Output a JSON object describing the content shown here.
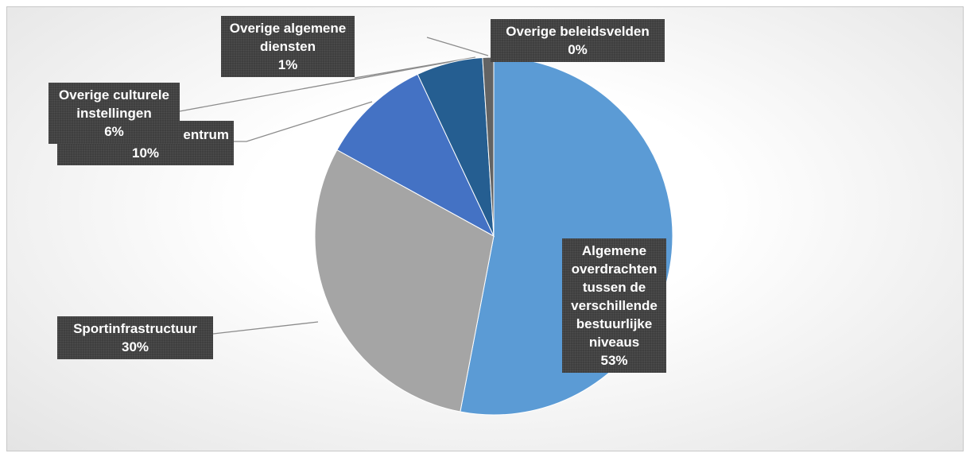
{
  "chart_data": {
    "type": "pie",
    "categories": [
      "Algemene overdrachten tussen de verschillende bestuurlijke niveaus",
      "Sportinfrastructuur",
      "entrum",
      "Overige culturele instellingen",
      "Overige algemene diensten",
      "Overige beleidsvelden"
    ],
    "values": [
      53,
      30,
      10,
      6,
      1,
      0
    ],
    "value_labels": [
      "53%",
      "30%",
      "10%",
      "6%",
      "1%",
      "0%"
    ],
    "colors": [
      "#5b9bd5",
      "#a5a5a5",
      "#4472c4",
      "#255e91",
      "#636363",
      "#7f7f7f"
    ]
  }
}
